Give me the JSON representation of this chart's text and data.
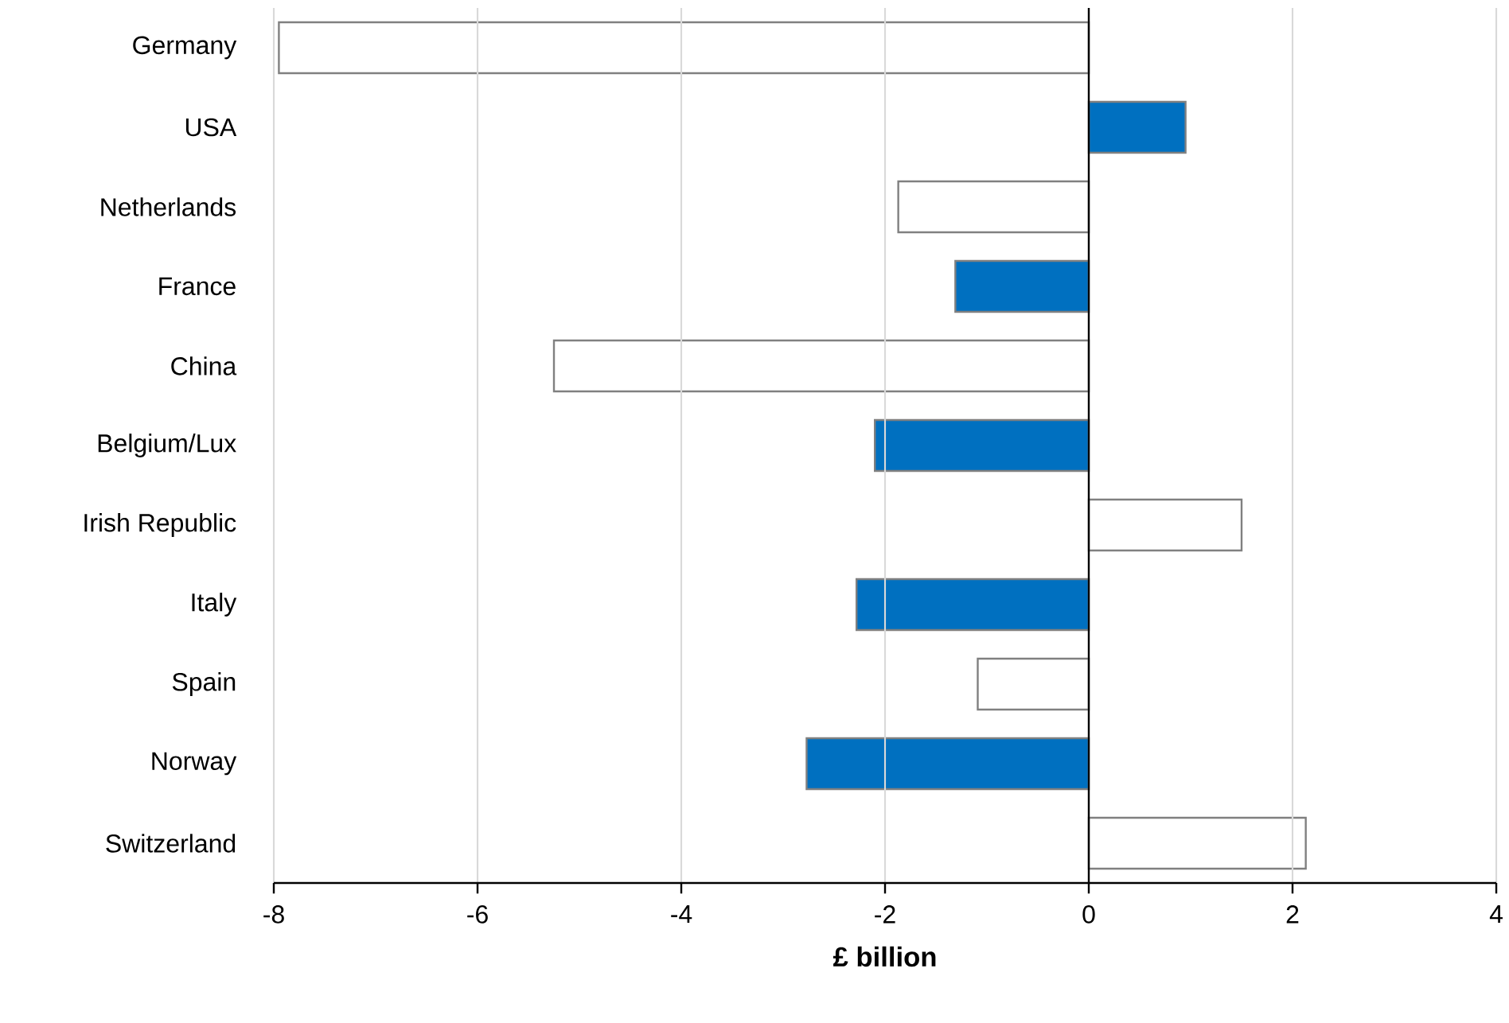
{
  "chart_data": {
    "type": "bar",
    "orientation": "horizontal",
    "categories": [
      "Germany",
      "USA",
      "Netherlands",
      "France",
      "China",
      "Belgium/Lux",
      "Irish Republic",
      "Italy",
      "Spain",
      "Norway",
      "Switzerland"
    ],
    "values": [
      -7.95,
      0.95,
      -1.87,
      -1.31,
      -5.25,
      -2.1,
      1.5,
      -2.28,
      -1.09,
      -2.77,
      2.13
    ],
    "colors": [
      "#ffffff",
      "#0070c0",
      "#ffffff",
      "#0070c0",
      "#ffffff",
      "#0070c0",
      "#ffffff",
      "#0070c0",
      "#ffffff",
      "#0070c0",
      "#ffffff"
    ],
    "xlim": [
      -8,
      4
    ],
    "xticks": [
      -8,
      -6,
      -4,
      -2,
      0,
      2,
      4
    ],
    "xlabel": "£ billion",
    "grid": "x"
  }
}
